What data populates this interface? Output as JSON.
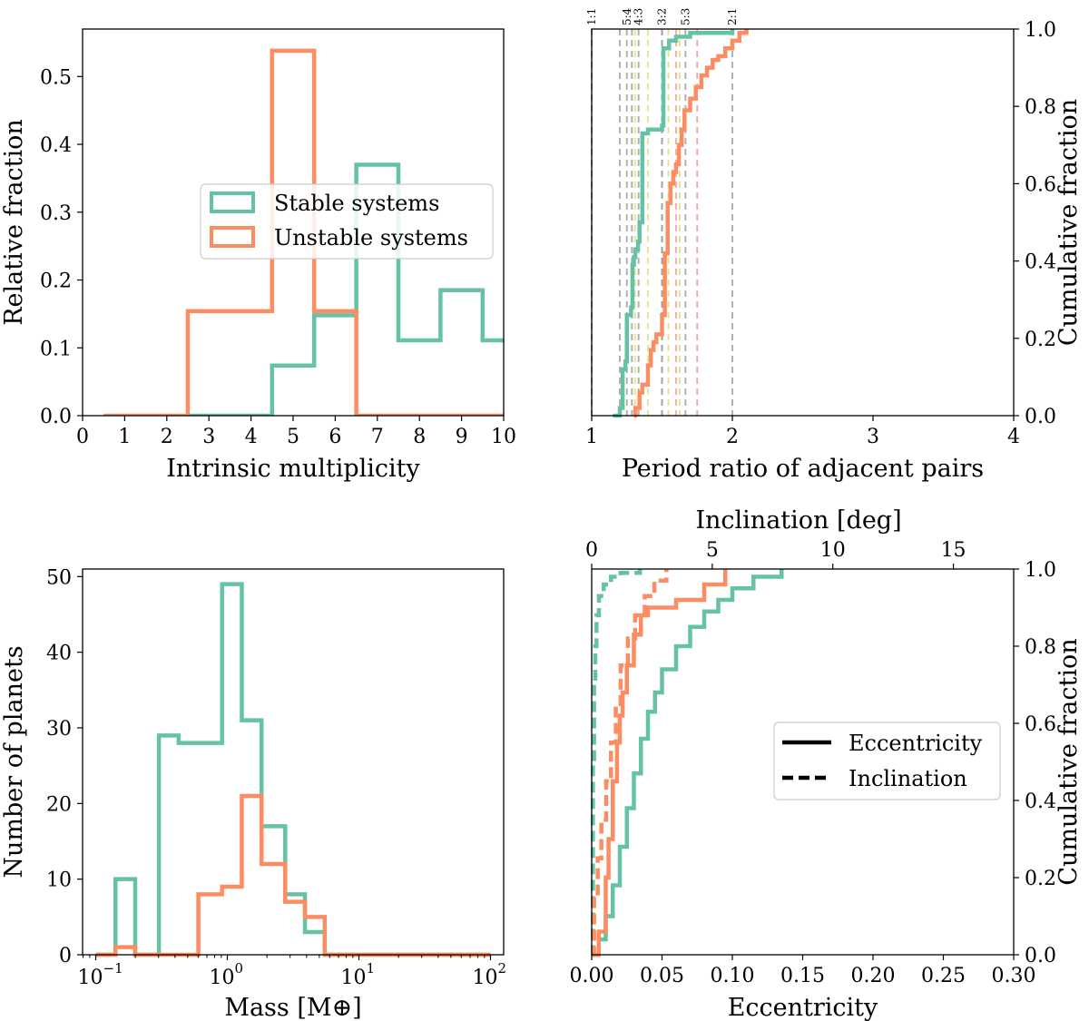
{
  "colors": {
    "stable": "#66c2a5",
    "unstable": "#fc8d62",
    "eccline": "#000000",
    "grid": "#9e9e9e"
  },
  "chart_data": [
    {
      "id": "multiplicity",
      "type": "step-histogram",
      "xlabel": "Intrinsic multiplicity",
      "ylabel": "Relative fraction",
      "xlim": [
        0,
        10
      ],
      "ylim": [
        0,
        0.57
      ],
      "xticks": [
        "0",
        "1",
        "2",
        "3",
        "4",
        "5",
        "6",
        "7",
        "8",
        "9",
        "10"
      ],
      "yticks": [
        "0.0",
        "0.1",
        "0.2",
        "0.3",
        "0.4",
        "0.5"
      ],
      "legend": {
        "position": "center-left",
        "entries": [
          "Stable systems",
          "Unstable systems"
        ]
      },
      "series": [
        {
          "name": "Stable systems",
          "edges": [
            2.5,
            3.5,
            4.5,
            5.5,
            6.5,
            7.5,
            8.5,
            9.5,
            10.5
          ],
          "values": [
            0,
            0,
            0.074,
            0.148,
            0.37,
            0.111,
            0.185,
            0.111
          ]
        },
        {
          "name": "Unstable systems",
          "edges": [
            0.5,
            1.5,
            2.5,
            3.5,
            4.5,
            5.5,
            6.5,
            7.5,
            8.5,
            9.5,
            10.5
          ],
          "values": [
            0,
            0,
            0.154,
            0.154,
            0.538,
            0.154,
            0,
            0,
            0,
            0
          ]
        }
      ]
    },
    {
      "id": "period-ratio",
      "type": "cdf-step",
      "xlabel": "Period ratio of adjacent pairs",
      "ylabel": "Cumulative fraction",
      "xlim": [
        1,
        4
      ],
      "ylim": [
        0,
        1
      ],
      "xticks": [
        "1",
        "2",
        "3",
        "4"
      ],
      "yticks": [
        "0.0",
        "0.2",
        "0.4",
        "0.6",
        "0.8",
        "1.0"
      ],
      "resonances": [
        "1:1",
        "5:4",
        "4:3",
        "3:2",
        "5:3",
        "2:1"
      ],
      "resonance_values": [
        1.0,
        1.25,
        1.3333,
        1.5,
        1.6667,
        2.0
      ],
      "extra_grey_lines": [
        1.2,
        1.286,
        1.5
      ],
      "yellow_lines": [
        1.308,
        1.4,
        1.545,
        1.625
      ],
      "red_lines": [
        1.6,
        1.75
      ],
      "series": [
        {
          "name": "Stable systems",
          "x": [
            1.15,
            1.2,
            1.22,
            1.24,
            1.25,
            1.28,
            1.29,
            1.3,
            1.31,
            1.33,
            1.34,
            1.36,
            1.4,
            1.42,
            1.5,
            1.51,
            1.55,
            1.6,
            1.7,
            1.8,
            2.0
          ],
          "y": [
            0.0,
            0.02,
            0.12,
            0.14,
            0.26,
            0.28,
            0.39,
            0.41,
            0.43,
            0.45,
            0.5,
            0.73,
            0.74,
            0.74,
            0.75,
            0.95,
            0.97,
            0.98,
            0.99,
            0.99,
            1.0
          ]
        },
        {
          "name": "Unstable systems",
          "x": [
            1.3,
            1.31,
            1.34,
            1.36,
            1.4,
            1.42,
            1.44,
            1.46,
            1.5,
            1.52,
            1.54,
            1.56,
            1.58,
            1.6,
            1.62,
            1.64,
            1.66,
            1.7,
            1.74,
            1.78,
            1.82,
            1.86,
            1.9,
            1.95,
            2.0,
            2.05,
            2.1
          ],
          "y": [
            0.0,
            0.02,
            0.06,
            0.08,
            0.13,
            0.17,
            0.19,
            0.21,
            0.26,
            0.42,
            0.55,
            0.6,
            0.63,
            0.65,
            0.7,
            0.74,
            0.79,
            0.82,
            0.85,
            0.88,
            0.9,
            0.92,
            0.93,
            0.95,
            0.97,
            0.99,
            1.0
          ]
        }
      ]
    },
    {
      "id": "mass",
      "type": "step-histogram-log",
      "xlabel": "Mass [M⊕]",
      "ylabel": "Number of planets",
      "xlim_log10": [
        -1.1,
        2.1
      ],
      "ylim": [
        0,
        51
      ],
      "xticks": [
        "10",
        "10",
        "10",
        "10"
      ],
      "xtick_exponents": [
        "−1",
        "0",
        "1",
        "2"
      ],
      "yticks": [
        "0",
        "10",
        "20",
        "30",
        "40",
        "50"
      ],
      "series": [
        {
          "name": "Stable systems",
          "edges_log10": [
            -1.0,
            -0.85,
            -0.7,
            -0.52,
            -0.37,
            -0.22,
            -0.04,
            0.11,
            0.26,
            0.44,
            0.59,
            0.74,
            0.92,
            1.07,
            1.22,
            1.4,
            1.55,
            1.7,
            1.85,
            2.0
          ],
          "values": [
            0,
            10,
            0,
            29,
            28,
            28,
            49,
            31,
            17,
            8,
            3,
            0,
            0,
            0,
            0,
            0,
            0,
            0,
            0
          ]
        },
        {
          "name": "Unstable systems",
          "edges_log10": [
            -1.0,
            -0.85,
            -0.7,
            -0.52,
            -0.37,
            -0.22,
            -0.04,
            0.11,
            0.26,
            0.44,
            0.59,
            0.74,
            0.92,
            1.07,
            1.22,
            1.4,
            1.55,
            1.7,
            1.85,
            2.0
          ],
          "values": [
            0,
            1,
            0,
            0,
            0,
            8,
            9,
            21,
            12,
            7,
            5,
            0,
            0,
            0,
            0,
            0,
            0,
            0,
            0
          ]
        }
      ]
    },
    {
      "id": "ecc-inc",
      "type": "cdf-step-dual-axis",
      "xlabel": "Eccentricity",
      "x2label": "Inclination [deg]",
      "ylabel": "Cumulative fraction",
      "xlim": [
        0,
        0.3
      ],
      "x2lim": [
        0,
        17.5
      ],
      "ylim": [
        0,
        1
      ],
      "xticks": [
        "0.00",
        "0.05",
        "0.10",
        "0.15",
        "0.20",
        "0.25",
        "0.30"
      ],
      "x2ticks": [
        "0",
        "5",
        "10",
        "15"
      ],
      "yticks": [
        "0.0",
        "0.2",
        "0.4",
        "0.6",
        "0.8",
        "1.0"
      ],
      "legend": {
        "position": "center-right",
        "entries": [
          "Eccentricity",
          "Inclination"
        ]
      },
      "series": [
        {
          "name": "Stable eccentricity",
          "style": "solid",
          "color": "stable",
          "x": [
            0.0,
            0.005,
            0.01,
            0.015,
            0.02,
            0.025,
            0.03,
            0.035,
            0.04,
            0.045,
            0.05,
            0.06,
            0.07,
            0.08,
            0.09,
            0.1,
            0.115,
            0.135
          ],
          "y": [
            0.0,
            0.04,
            0.1,
            0.18,
            0.28,
            0.38,
            0.47,
            0.56,
            0.63,
            0.68,
            0.74,
            0.8,
            0.85,
            0.89,
            0.92,
            0.95,
            0.98,
            1.0
          ]
        },
        {
          "name": "Unstable eccentricity",
          "style": "solid",
          "color": "unstable",
          "x": [
            0.0,
            0.005,
            0.01,
            0.012,
            0.015,
            0.018,
            0.02,
            0.022,
            0.025,
            0.03,
            0.035,
            0.04,
            0.06,
            0.08,
            0.095
          ],
          "y": [
            0.0,
            0.06,
            0.2,
            0.3,
            0.45,
            0.55,
            0.62,
            0.68,
            0.75,
            0.83,
            0.88,
            0.9,
            0.92,
            0.96,
            1.0
          ]
        },
        {
          "name": "Stable inclination",
          "style": "dashed",
          "color": "stable",
          "x2": [
            0.0,
            0.05,
            0.1,
            0.15,
            0.2,
            0.3,
            0.5,
            0.8,
            1.2,
            2.0
          ],
          "y": [
            0.0,
            0.5,
            0.7,
            0.8,
            0.88,
            0.93,
            0.96,
            0.98,
            0.99,
            1.0
          ]
        },
        {
          "name": "Unstable inclination",
          "style": "dashed",
          "color": "unstable",
          "x2": [
            0.0,
            0.1,
            0.25,
            0.4,
            0.6,
            0.8,
            1.0,
            1.2,
            1.5,
            1.8,
            2.2,
            2.6,
            3.1
          ],
          "y": [
            0.0,
            0.15,
            0.25,
            0.35,
            0.45,
            0.55,
            0.65,
            0.75,
            0.82,
            0.88,
            0.93,
            0.97,
            1.0
          ]
        }
      ]
    }
  ]
}
